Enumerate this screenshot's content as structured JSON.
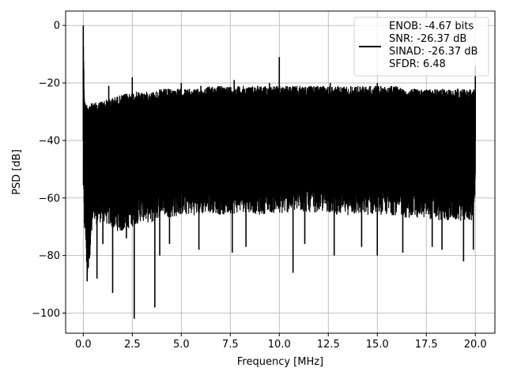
{
  "chart_data": {
    "type": "line",
    "title": "",
    "xlabel": "Frequency [MHz]",
    "ylabel": "PSD [dB]",
    "xlim": [
      -0.9,
      21.0
    ],
    "ylim": [
      -107,
      5
    ],
    "xticks": [
      0.0,
      2.5,
      5.0,
      7.5,
      10.0,
      12.5,
      15.0,
      17.5,
      20.0
    ],
    "xtick_labels": [
      "0.0",
      "2.5",
      "5.0",
      "7.5",
      "10.0",
      "12.5",
      "15.0",
      "17.5",
      "20.0"
    ],
    "yticks": [
      0,
      -20,
      -40,
      -60,
      -80,
      -100
    ],
    "ytick_labels": [
      "0",
      "−20",
      "−40",
      "−60",
      "−80",
      "−100"
    ],
    "grid": true,
    "legend_position": "top-right",
    "legend_lines": [
      "ENOB: -4.67 bits",
      "SNR: -26.37 dB",
      "SINAD: -26.37 dB",
      "SFDR: 6.48"
    ],
    "line_color": "#000000",
    "series": [
      {
        "x": [
          0.0,
          0.0,
          0.05,
          0.1,
          0.2,
          0.5,
          1.0,
          1.5,
          2.0,
          2.5,
          3.0,
          3.5,
          4.0,
          4.5,
          5.0,
          5.5,
          6.0,
          6.5,
          7.0,
          7.5,
          8.0,
          8.5,
          9.0,
          9.5,
          10.0,
          10.5,
          11.0,
          11.5,
          12.0,
          12.5,
          13.0,
          13.5,
          14.0,
          14.5,
          15.0,
          15.5,
          16.0,
          16.5,
          17.0,
          17.5,
          18.0,
          18.5,
          19.0,
          19.5,
          19.9,
          20.0
        ],
        "upper": [
          -53,
          0,
          -22,
          -27,
          -27,
          -27,
          -26,
          -25,
          -24,
          -23,
          -23,
          -23,
          -22,
          -22,
          -22,
          -22,
          -22,
          -21,
          -21,
          -21,
          -21,
          -21,
          -21,
          -21,
          -21,
          -21,
          -21,
          -21,
          -21,
          -21,
          -21,
          -21,
          -21,
          -21,
          -21,
          -21,
          -21,
          -22,
          -22,
          -22,
          -22,
          -22,
          -22,
          -22,
          -22,
          -22
        ],
        "lower": [
          -53,
          -53,
          -72,
          -73,
          -89,
          -70,
          -68,
          -71,
          -72,
          -70,
          -68,
          -69,
          -66,
          -67,
          -66,
          -66,
          -66,
          -65,
          -66,
          -66,
          -65,
          -65,
          -66,
          -65,
          -66,
          -65,
          -65,
          -65,
          -65,
          -65,
          -66,
          -66,
          -66,
          -66,
          -66,
          -66,
          -66,
          -67,
          -67,
          -67,
          -68,
          -68,
          -68,
          -68,
          -68,
          -57
        ],
        "peaks": [
          [
            0.0,
            0
          ],
          [
            2.5,
            -18
          ],
          [
            1.3,
            -21
          ],
          [
            6.0,
            -21
          ],
          [
            8.9,
            -21
          ],
          [
            9.5,
            -20
          ],
          [
            10.0,
            -11
          ],
          [
            12.6,
            -20
          ],
          [
            20.0,
            -14
          ],
          [
            5.0,
            -20
          ],
          [
            7.7,
            -19
          ],
          [
            15.0,
            -20
          ]
        ],
        "dips": [
          [
            0.2,
            -89
          ],
          [
            0.7,
            -88
          ],
          [
            1.5,
            -93
          ],
          [
            2.6,
            -102
          ],
          [
            3.65,
            -98
          ],
          [
            0.35,
            -75
          ],
          [
            1.0,
            -76
          ],
          [
            2.2,
            -74
          ],
          [
            3.9,
            -80
          ],
          [
            5.9,
            -78
          ],
          [
            7.6,
            -79
          ],
          [
            8.3,
            -77
          ],
          [
            10.7,
            -86
          ],
          [
            12.8,
            -80
          ],
          [
            14.2,
            -77
          ],
          [
            15.0,
            -80
          ],
          [
            16.3,
            -79
          ],
          [
            17.8,
            -77
          ],
          [
            19.4,
            -82
          ],
          [
            19.9,
            -78
          ],
          [
            4.4,
            -76
          ],
          [
            11.3,
            -76
          ],
          [
            18.3,
            -78
          ]
        ]
      }
    ]
  }
}
